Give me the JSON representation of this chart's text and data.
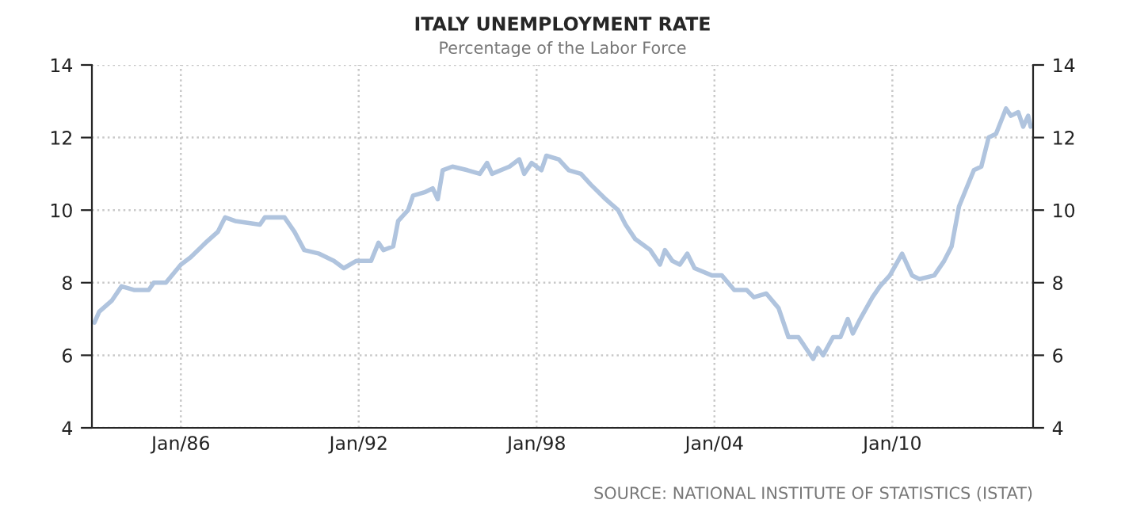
{
  "chart_data": {
    "type": "line",
    "title": "ITALY UNEMPLOYMENT RATE",
    "subtitle": "Percentage of the Labor Force",
    "annotations": [
      "SOURCE: NATIONAL INSTITUTE OF STATISTICS (ISTAT)"
    ],
    "x": [
      "1983-02",
      "1983-04",
      "1983-09",
      "1984-01",
      "1984-06",
      "1984-12",
      "1985-02",
      "1985-07",
      "1986-01",
      "1986-05",
      "1986-11",
      "1987-04",
      "1987-07",
      "1987-11",
      "1988-09",
      "1988-11",
      "1989-07",
      "1989-11",
      "1990-03",
      "1990-09",
      "1991-03",
      "1991-07",
      "1991-12",
      "1992-06",
      "1992-09",
      "1992-11",
      "1993-03",
      "1993-05",
      "1993-09",
      "1993-11",
      "1994-04",
      "1994-07",
      "1994-09",
      "1994-11",
      "1995-03",
      "1995-09",
      "1996-02",
      "1996-05",
      "1996-07",
      "1997-02",
      "1997-06",
      "1997-08",
      "1997-11",
      "1998-03",
      "1998-05",
      "1998-10",
      "1999-02",
      "1999-07",
      "1999-11",
      "2000-05",
      "2000-10",
      "2001-01",
      "2001-05",
      "2001-11",
      "2002-03",
      "2002-05",
      "2002-08",
      "2002-11",
      "2003-02",
      "2003-05",
      "2003-12",
      "2004-04",
      "2004-09",
      "2005-02",
      "2005-05",
      "2005-10",
      "2006-03",
      "2006-07",
      "2006-11",
      "2007-05",
      "2007-07",
      "2007-09",
      "2008-01",
      "2008-04",
      "2008-07",
      "2008-09",
      "2008-12",
      "2009-05",
      "2009-08",
      "2009-12",
      "2010-05",
      "2010-09",
      "2010-12",
      "2011-06",
      "2011-10",
      "2012-01",
      "2012-04",
      "2012-07",
      "2012-10",
      "2013-01",
      "2013-04",
      "2013-07",
      "2013-11",
      "2014-01",
      "2014-04",
      "2014-06",
      "2014-08",
      "2014-09"
    ],
    "series": [
      {
        "color": "#b0c4de",
        "values": [
          6.9,
          7.2,
          7.5,
          7.9,
          7.8,
          7.8,
          8.0,
          8.0,
          8.5,
          8.7,
          9.1,
          9.4,
          9.8,
          9.7,
          9.6,
          9.8,
          9.8,
          9.4,
          8.9,
          8.8,
          8.6,
          8.4,
          8.6,
          8.6,
          9.1,
          8.9,
          9.0,
          9.7,
          10.0,
          10.4,
          10.5,
          10.6,
          10.3,
          11.1,
          11.2,
          11.1,
          11.0,
          11.3,
          11.0,
          11.2,
          11.4,
          11.0,
          11.3,
          11.1,
          11.5,
          11.4,
          11.1,
          11.0,
          10.7,
          10.3,
          10.0,
          9.6,
          9.2,
          8.9,
          8.5,
          8.9,
          8.6,
          8.5,
          8.8,
          8.4,
          8.2,
          8.2,
          7.8,
          7.8,
          7.6,
          7.7,
          7.3,
          6.5,
          6.5,
          5.9,
          6.2,
          6.0,
          6.5,
          6.5,
          7.0,
          6.6,
          7.0,
          7.6,
          7.9,
          8.2,
          8.8,
          8.2,
          8.1,
          8.2,
          8.6,
          9.0,
          10.1,
          10.6,
          11.1,
          11.2,
          12.0,
          12.1,
          12.8,
          12.6,
          12.7,
          12.3,
          12.6,
          12.3
        ]
      }
    ],
    "xlim": [
      "1983-01",
      "2014-10"
    ],
    "xticks": [
      {
        "value": "1986-01",
        "label": "Jan/86"
      },
      {
        "value": "1992-01",
        "label": "Jan/92"
      },
      {
        "value": "1998-01",
        "label": "Jan/98"
      },
      {
        "value": "2004-01",
        "label": "Jan/04"
      },
      {
        "value": "2010-01",
        "label": "Jan/10"
      }
    ],
    "ylim": [
      4,
      14
    ],
    "yticks": [
      4,
      6,
      8,
      10,
      12,
      14
    ],
    "y2lim": [
      4,
      14
    ],
    "y2ticks": [
      4,
      6,
      8,
      10,
      12,
      14
    ],
    "grid": true,
    "line_style": "solid",
    "marker": "none"
  }
}
